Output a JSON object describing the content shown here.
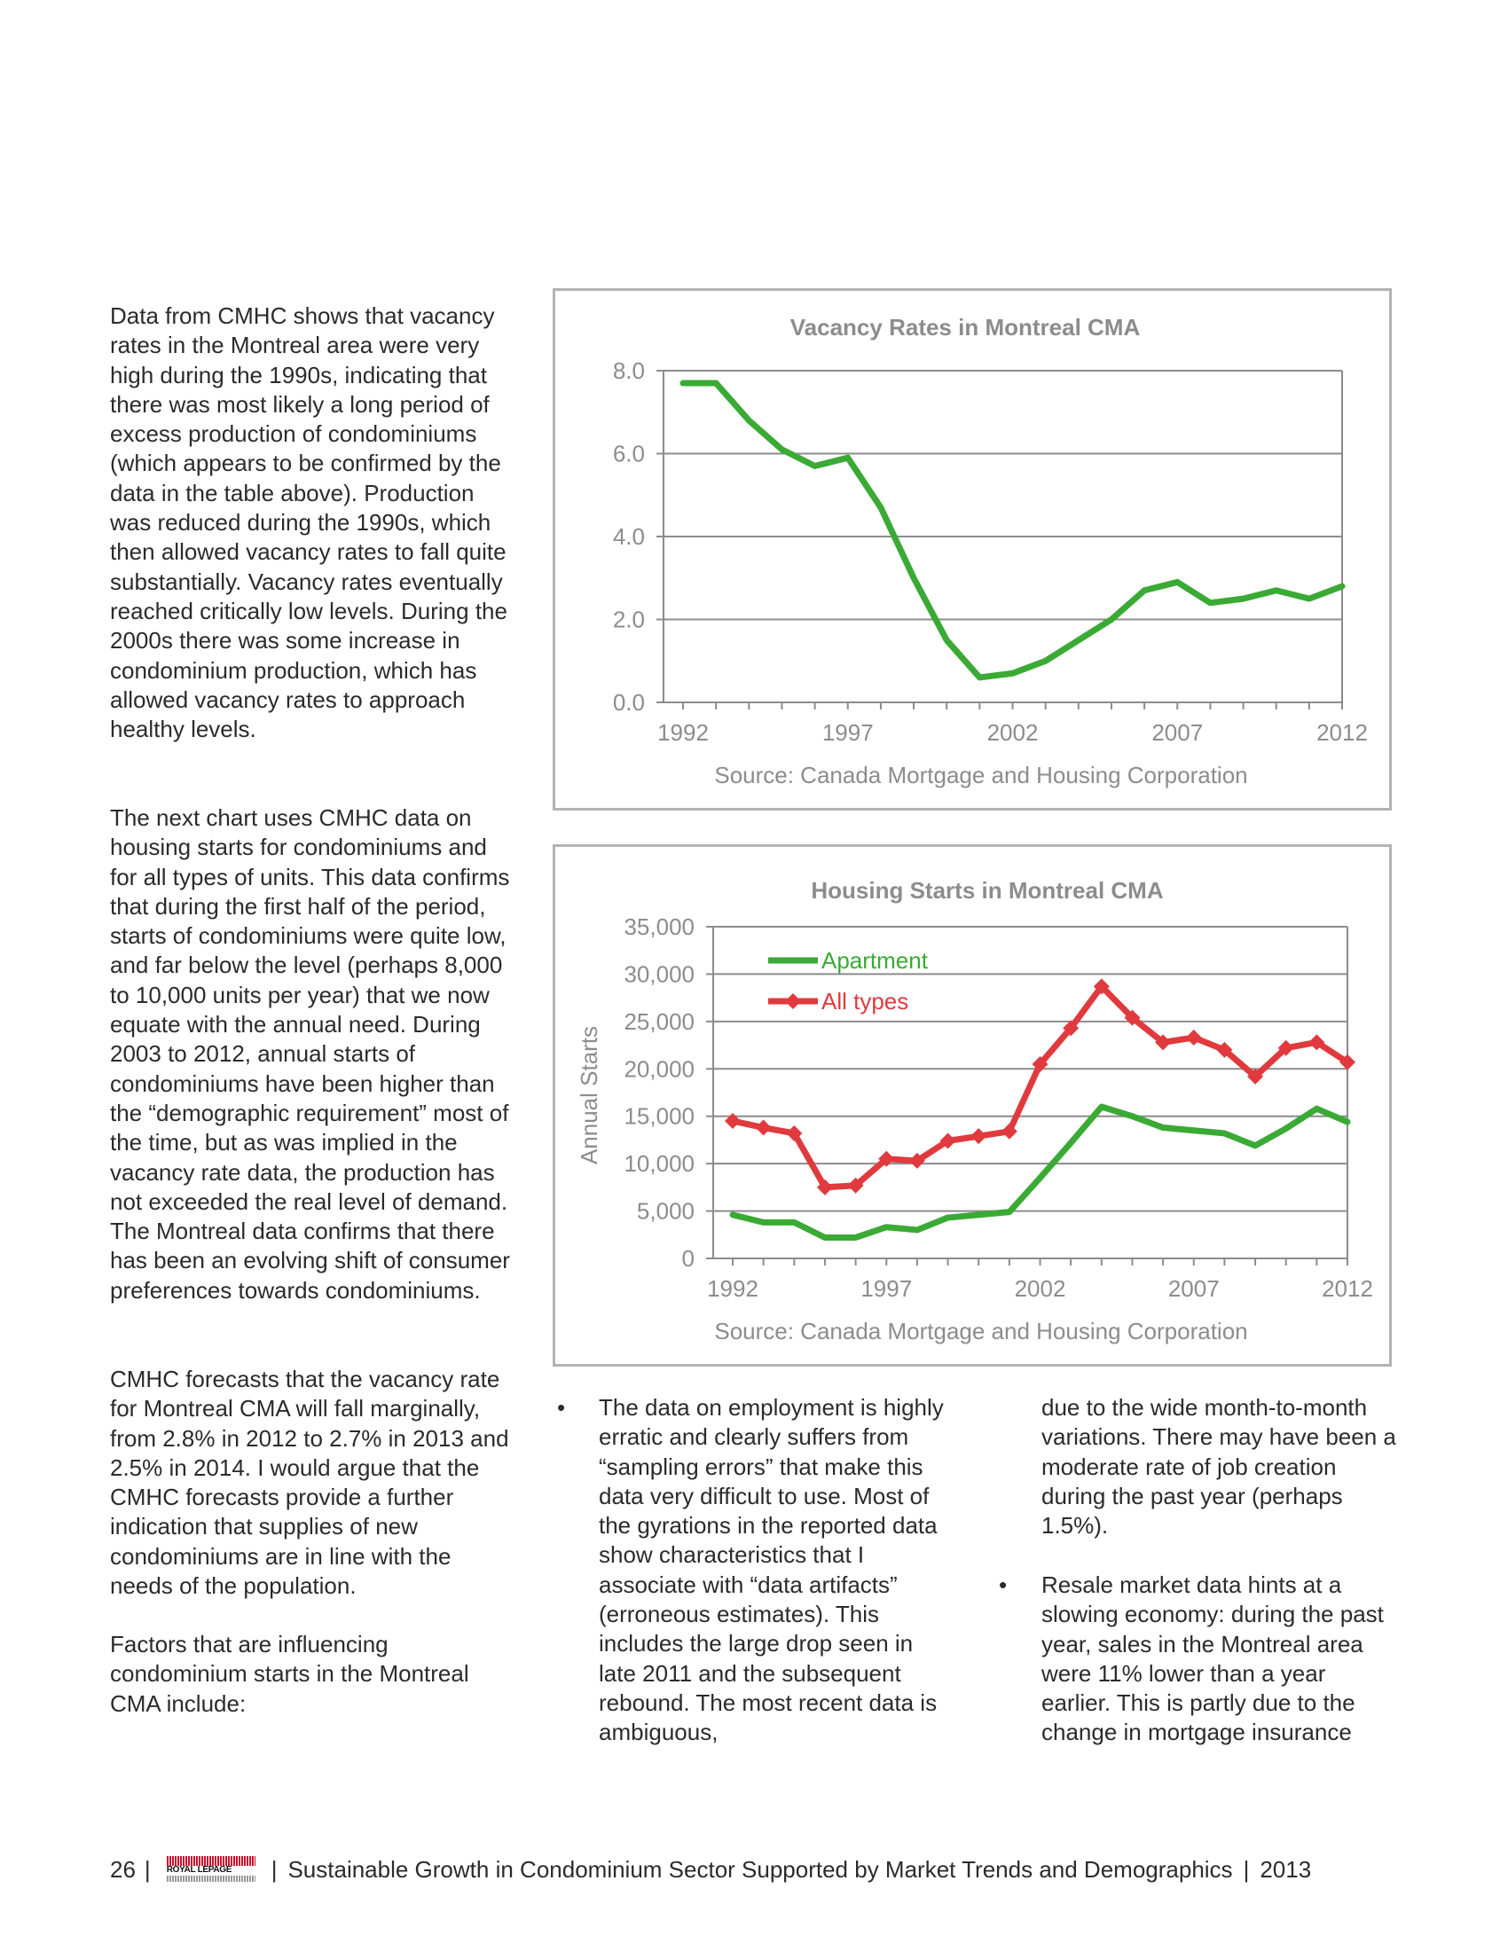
{
  "left_column": {
    "para1": "Data from CMHC shows that vacancy rates in the Montreal area were very high during the 1990s, indicating that there was most likely a long period of excess production of condominiums (which appears to be confirmed by the data in the table above). Production was reduced during the 1990s, which then allowed vacancy rates to fall quite substantially. Vacancy rates eventually reached critically low levels. During the 2000s there was some increase in condominium production, which has allowed vacancy rates to approach healthy levels.",
    "para2": "The next chart uses CMHC data on housing starts for condominiums and for all types of units. This data confirms that during the first half of the period, starts of condominiums were quite low, and far below the level (perhaps 8,000 to 10,000 units per year) that we now equate with the annual need. During 2003 to 2012, annual starts of condominiums have been higher than the “demographic requirement” most of the time, but as was implied in the vacancy rate data, the production has not exceeded the real level of demand. The Montreal data confirms that there has been an evolving shift of consumer preferences towards condominiums.",
    "para3": "CMHC forecasts that the vacancy rate for Montreal CMA will fall marginally, from 2.8% in 2012 to 2.7% in 2013 and 2.5% in 2014. I would argue that the CMHC forecasts provide a further indication that supplies of new condominiums are in line with the needs of the population.",
    "para4": "Factors that are influencing condominium starts in the Montreal CMA include:"
  },
  "bullets": {
    "marker": "•",
    "item1_part1": "The data on employment is highly erratic and clearly suffers from “sampling errors” that make this data very difficult to use. Most of the gyrations in the reported data show characteristics that I associate with “data artifacts” (erroneous estimates). This includes the large drop seen in late 2011 and the subsequent rebound. The most recent data is ambiguous,",
    "item1_part2": "due to the wide month-to-month variations. There may have been a moderate rate of job creation during the past year (perhaps 1.5%).",
    "item2": "Resale market data hints at a slowing economy: during the past year, sales in the Montreal area were 11% lower than a year earlier. This is partly due to the change in mortgage insurance"
  },
  "footer": {
    "page_number": "26",
    "separator": "|",
    "logo_text": "ROYAL LEPAGE",
    "title": "Sustainable Growth in Condominium Sector Supported by Market Trends and Demographics",
    "year": "2013"
  },
  "chart_data": [
    {
      "type": "line",
      "title": "Vacancy Rates in Montreal CMA",
      "source": "Source:  Canada Mortgage and Housing Corporation",
      "xlabel": "",
      "ylabel": "",
      "x": [
        1992,
        1993,
        1994,
        1995,
        1996,
        1997,
        1998,
        1999,
        2000,
        2001,
        2002,
        2003,
        2004,
        2005,
        2006,
        2007,
        2008,
        2009,
        2010,
        2011,
        2012
      ],
      "x_ticks": [
        "1992",
        "1997",
        "2002",
        "2007",
        "2012"
      ],
      "y_ticks": [
        "0.0",
        "2.0",
        "4.0",
        "6.0",
        "8.0"
      ],
      "ylim": [
        0,
        8
      ],
      "grid": true,
      "legend": false,
      "series": [
        {
          "color": "#3aaa35",
          "values": [
            7.7,
            7.7,
            6.8,
            6.1,
            5.7,
            5.9,
            4.7,
            3.0,
            1.5,
            0.6,
            0.7,
            1.0,
            1.5,
            2.0,
            2.7,
            2.9,
            2.4,
            2.5,
            2.7,
            2.5,
            2.8
          ]
        }
      ]
    },
    {
      "type": "line",
      "title": "Housing Starts in Montreal CMA",
      "source": "Source:  Canada Mortgage and Housing Corporation",
      "xlabel": "",
      "ylabel": "Annual Starts",
      "x": [
        1992,
        1993,
        1994,
        1995,
        1996,
        1997,
        1998,
        1999,
        2000,
        2001,
        2002,
        2003,
        2004,
        2005,
        2006,
        2007,
        2008,
        2009,
        2010,
        2011,
        2012
      ],
      "x_ticks": [
        "1992",
        "1997",
        "2002",
        "2007",
        "2012"
      ],
      "y_ticks": [
        "0",
        "5,000",
        "10,000",
        "15,000",
        "20,000",
        "25,000",
        "30,000",
        "35,000"
      ],
      "ylim": [
        0,
        35000
      ],
      "grid": true,
      "legend": "top-left",
      "series": [
        {
          "name": "Apartment",
          "color": "#3aaa35",
          "marker": "none",
          "values": [
            4600,
            3800,
            3800,
            2200,
            2200,
            3300,
            3000,
            4300,
            4600,
            4900,
            8500,
            12200,
            16000,
            15000,
            13800,
            13500,
            13200,
            11900,
            13700,
            15800,
            14400
          ]
        },
        {
          "name": "All types",
          "color": "#e03a3e",
          "marker": "diamond",
          "values": [
            14500,
            13800,
            13200,
            7500,
            7700,
            10500,
            10300,
            12400,
            12900,
            13400,
            20500,
            24300,
            28700,
            25400,
            22800,
            23300,
            22000,
            19200,
            22200,
            22800,
            20700
          ]
        }
      ]
    }
  ]
}
